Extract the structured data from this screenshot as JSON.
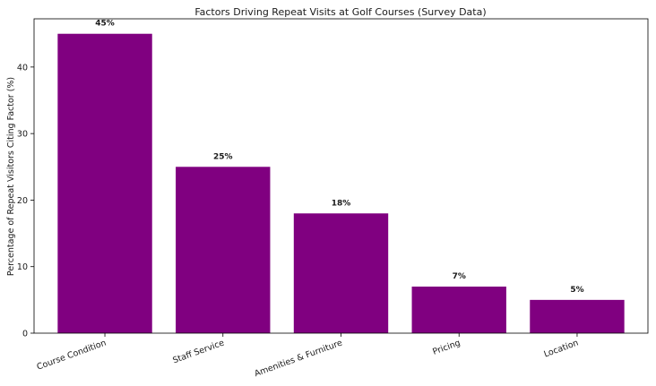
{
  "chart_data": {
    "type": "bar",
    "title": "Factors Driving Repeat Visits at Golf Courses (Survey Data)",
    "xlabel": "",
    "ylabel": "Percentage of Repeat Visitors Citing Factor (%)",
    "categories": [
      "Course Condition",
      "Staff Service",
      "Amenities & Furniture",
      "Pricing",
      "Location"
    ],
    "values": [
      45,
      25,
      18,
      7,
      5
    ],
    "data_labels": [
      "45%",
      "25%",
      "18%",
      "7%",
      "5%"
    ],
    "ylim": [
      0,
      47.25
    ],
    "yticks": [
      0,
      10,
      20,
      30,
      40
    ],
    "bar_color": "#800080",
    "grid": false,
    "legend": "none"
  }
}
